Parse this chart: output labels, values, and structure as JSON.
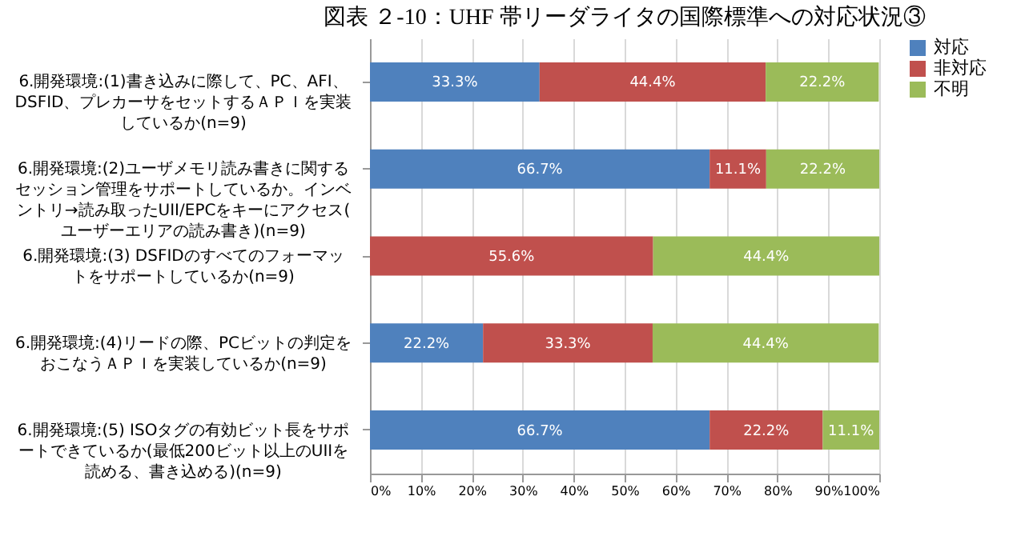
{
  "chart_data": {
    "type": "bar",
    "orientation": "horizontal",
    "stacked": true,
    "title": "図表 ２-10：UHF 帯リーダライタの国際標準への対応状況③",
    "categories": [
      "6.開発環境:(1)書き込みに際して、PC、AFI、DSFID、プレカーサをセットするＡＰＩを実装しているか(n=9)",
      "6.開発環境:(2)ユーザメモリ読み書きに関するセッション管理をサポートしているか。インベントリ→読み取ったUII/EPCをキーにアクセス(ユーザーエリアの読み書き)(n=9)",
      "6.開発環境:(3) DSFIDのすべてのフォーマットをサポートしているか(n=9)",
      "6.開発環境:(4)リードの際、PCビットの判定をおこなうＡＰＩを実装しているか(n=9)",
      "6.開発環境:(5) ISOタグの有効ビット長をサポートできているか(最低200ビット以上のUIIを読める、書き込める)(n=9)"
    ],
    "series": [
      {
        "name": "対応",
        "color": "#4f81bd",
        "values": [
          33.3,
          66.7,
          null,
          22.2,
          66.7
        ],
        "value_labels": [
          "33.3%",
          "66.7%",
          null,
          "22.2%",
          "66.7%"
        ]
      },
      {
        "name": "非対応",
        "color": "#c0504d",
        "values": [
          44.4,
          11.1,
          55.6,
          33.3,
          22.2
        ],
        "value_labels": [
          "44.4%",
          "11.1%",
          "55.6%",
          "33.3%",
          "22.2%"
        ]
      },
      {
        "name": "不明",
        "color": "#9bbb59",
        "values": [
          22.2,
          22.2,
          44.4,
          44.4,
          11.1
        ],
        "value_labels": [
          "22.2%",
          "22.2%",
          "44.4%",
          "44.4%",
          "11.1%"
        ]
      }
    ],
    "xlim": [
      0,
      100
    ],
    "xticks": [
      {
        "value": 0,
        "label": "0%"
      },
      {
        "value": 10,
        "label": "10%"
      },
      {
        "value": 20,
        "label": "20%"
      },
      {
        "value": 30,
        "label": "30%"
      },
      {
        "value": 40,
        "label": "40%"
      },
      {
        "value": 50,
        "label": "50%"
      },
      {
        "value": 60,
        "label": "60%"
      },
      {
        "value": 70,
        "label": "70%"
      },
      {
        "value": 80,
        "label": "80%"
      },
      {
        "value": 90,
        "label": "90%"
      },
      {
        "value": 100,
        "label": "100%"
      }
    ],
    "grid": "x",
    "legend": "right"
  }
}
